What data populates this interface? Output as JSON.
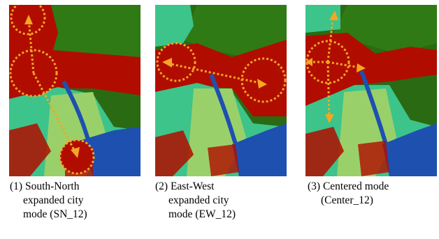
{
  "figure": {
    "panels": [
      {
        "id": "SN_12",
        "caption_lines": [
          "(1) South-North",
          "expanded city",
          "mode (SN_12)"
        ],
        "arrow_direction": "south-north"
      },
      {
        "id": "EW_12",
        "caption_lines": [
          "(2) East-West",
          "expanded city",
          "mode (EW_12)"
        ],
        "arrow_direction": "east-west"
      },
      {
        "id": "Center_12",
        "caption_lines": [
          "(3) Centered mode",
          "(Center_12)"
        ],
        "arrow_direction": "radial"
      }
    ],
    "colors": {
      "urban": "#b00d00",
      "forest": "#2a6a12",
      "farmland": "#9ad06a",
      "grass": "#3cc48a",
      "water": "#1e50b0",
      "marker": "#f5a623"
    }
  }
}
